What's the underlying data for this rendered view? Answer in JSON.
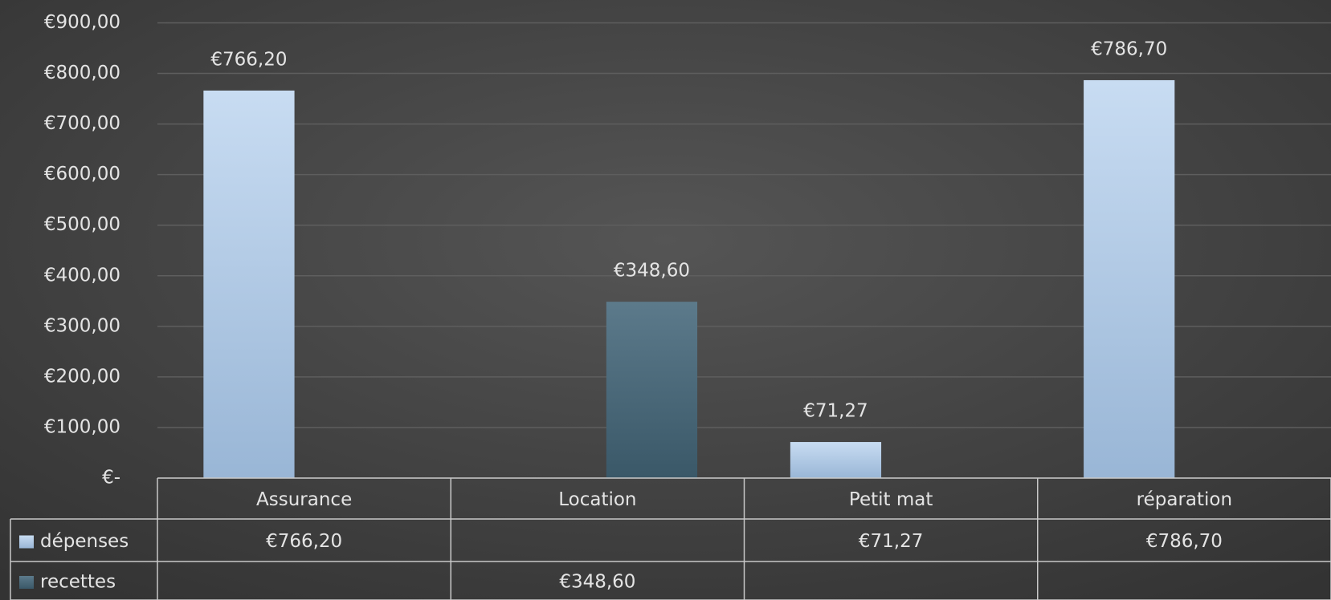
{
  "chart_data": {
    "type": "bar",
    "categories": [
      "Assurance",
      "Location",
      "Petit mat",
      "réparation"
    ],
    "series": [
      {
        "name": "dépenses",
        "color": "#b9d1ec",
        "values": [
          766.2,
          null,
          71.27,
          786.7
        ],
        "value_labels": [
          "€766,20",
          null,
          "€71,27",
          "€786,70"
        ]
      },
      {
        "name": "recettes",
        "color": "#4d6b7c",
        "values": [
          null,
          348.6,
          null,
          null
        ],
        "value_labels": [
          null,
          "€348,60",
          null,
          null
        ]
      }
    ],
    "ylim": [
      0,
      900
    ],
    "yticks": [
      {
        "value": 0,
        "label": "€-"
      },
      {
        "value": 100,
        "label": "€100,00"
      },
      {
        "value": 200,
        "label": "€200,00"
      },
      {
        "value": 300,
        "label": "€300,00"
      },
      {
        "value": 400,
        "label": "€400,00"
      },
      {
        "value": 500,
        "label": "€500,00"
      },
      {
        "value": 600,
        "label": "€600,00"
      },
      {
        "value": 700,
        "label": "€700,00"
      },
      {
        "value": 800,
        "label": "€800,00"
      },
      {
        "value": 900,
        "label": "€900,00"
      }
    ],
    "grid": true,
    "data_table": true
  }
}
